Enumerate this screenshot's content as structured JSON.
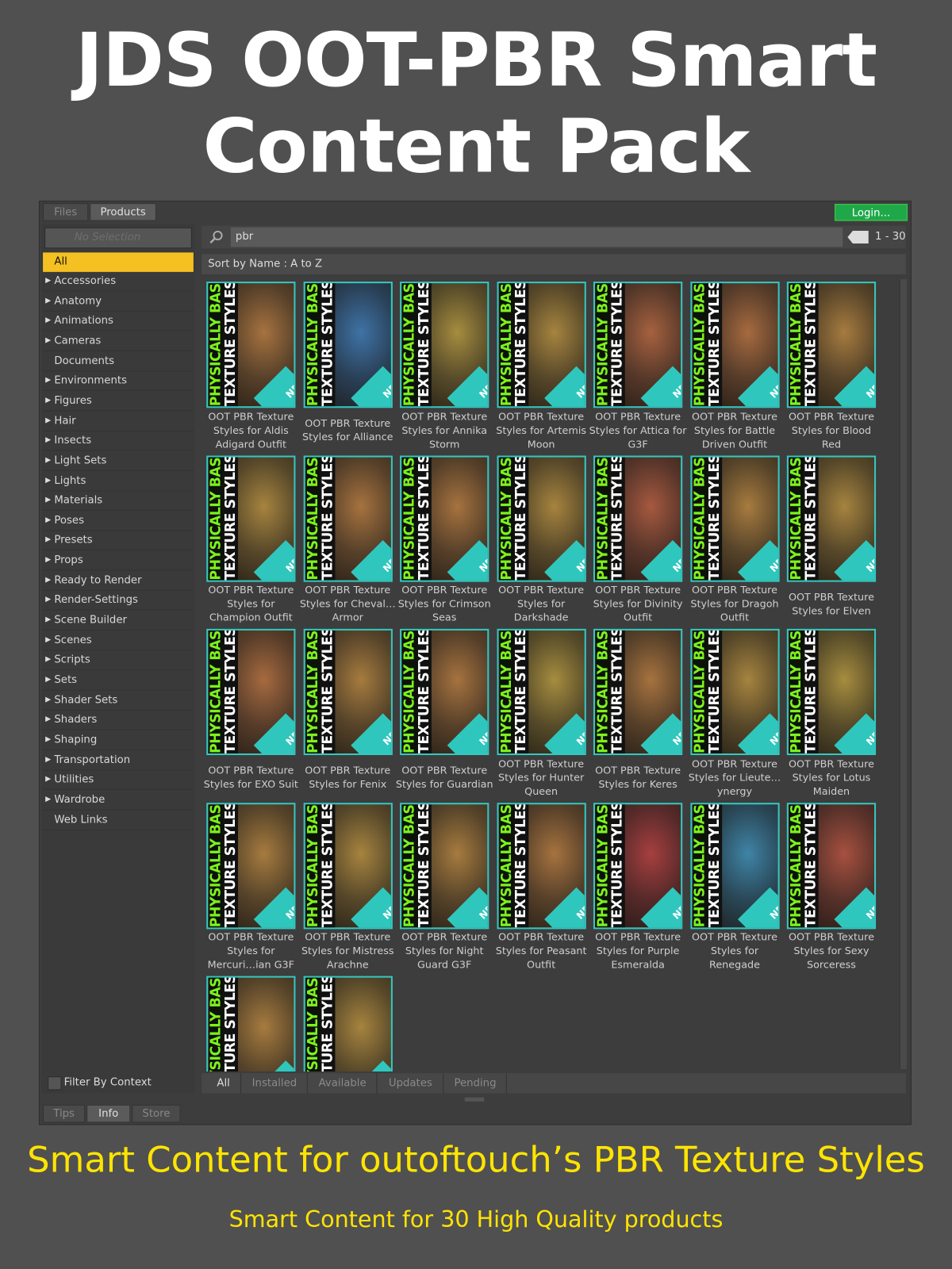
{
  "header": {
    "title": "JDS OOT-PBR Smart Content Pack"
  },
  "top_tabs": [
    {
      "label": "Files",
      "active": false
    },
    {
      "label": "Products",
      "active": true
    }
  ],
  "login": "Login...",
  "sidebar": {
    "selector": "No Selection",
    "selected": "All",
    "categories": [
      {
        "label": "Accessories",
        "expandable": true
      },
      {
        "label": "Anatomy",
        "expandable": true
      },
      {
        "label": "Animations",
        "expandable": true
      },
      {
        "label": "Cameras",
        "expandable": true
      },
      {
        "label": "Documents",
        "expandable": false
      },
      {
        "label": "Environments",
        "expandable": true
      },
      {
        "label": "Figures",
        "expandable": true
      },
      {
        "label": "Hair",
        "expandable": true
      },
      {
        "label": "Insects",
        "expandable": true
      },
      {
        "label": "Light Sets",
        "expandable": true
      },
      {
        "label": "Lights",
        "expandable": true
      },
      {
        "label": "Materials",
        "expandable": true
      },
      {
        "label": "Poses",
        "expandable": true
      },
      {
        "label": "Presets",
        "expandable": true
      },
      {
        "label": "Props",
        "expandable": true
      },
      {
        "label": "Ready to Render",
        "expandable": true
      },
      {
        "label": "Render-Settings",
        "expandable": true
      },
      {
        "label": "Scene Builder",
        "expandable": true
      },
      {
        "label": "Scenes",
        "expandable": true
      },
      {
        "label": "Scripts",
        "expandable": true
      },
      {
        "label": "Sets",
        "expandable": true
      },
      {
        "label": "Shader Sets",
        "expandable": true
      },
      {
        "label": "Shaders",
        "expandable": true
      },
      {
        "label": "Shaping",
        "expandable": true
      },
      {
        "label": "Transportation",
        "expandable": true
      },
      {
        "label": "Utilities",
        "expandable": true
      },
      {
        "label": "Wardrobe",
        "expandable": true
      },
      {
        "label": "Web Links",
        "expandable": false
      }
    ],
    "filter": "Filter By Context"
  },
  "search": {
    "query": "pbr",
    "range": "1 - 30",
    "sort": "Sort by Name : A to Z"
  },
  "thumbnail": {
    "line1": "PHYSICALLY BASED",
    "line2": "TEXTURE STYLES",
    "badge": "NEW"
  },
  "products": [
    "OOT PBR Texture Styles for Aldis Adigard Outfit",
    "OOT PBR Texture Styles for Alliance",
    "OOT PBR Texture Styles for Annika Storm",
    "OOT PBR Texture Styles for Artemis Moon",
    "OOT PBR Texture Styles for Attica for G3F",
    "OOT PBR Texture Styles for Battle Driven Outfit",
    "OOT PBR Texture Styles for Blood Red",
    "OOT PBR Texture Styles for Champion Outfit",
    "OOT PBR Texture Styles for Cheval… Armor",
    "OOT PBR Texture Styles for Crimson Seas",
    "OOT PBR Texture Styles for Darkshade",
    "OOT PBR Texture Styles for Divinity Outfit",
    "OOT PBR Texture Styles for Dragoh Outfit",
    "OOT PBR Texture Styles for Elven",
    "OOT PBR Texture Styles for EXO Suit",
    "OOT PBR Texture Styles for Fenix",
    "OOT PBR Texture Styles for Guardian",
    "OOT PBR Texture Styles for Hunter Queen",
    "OOT PBR Texture Styles for Keres",
    "OOT PBR Texture Styles for Lieute…ynergy",
    "OOT PBR Texture Styles for Lotus Maiden",
    "OOT PBR Texture Styles for Mercuri…ian G3F",
    "OOT PBR Texture Styles for Mistress Arachne",
    "OOT PBR Texture Styles for Night Guard G3F",
    "OOT PBR Texture Styles for Peasant Outfit",
    "OOT PBR Texture Styles for Purple Esmeralda",
    "OOT PBR Texture Styles for Renegade",
    "OOT PBR Texture Styles for Sexy Sorceress",
    null,
    null
  ],
  "filter_tabs": [
    "All",
    "Installed",
    "Available",
    "Updates",
    "Pending"
  ],
  "lower_tabs": [
    {
      "label": "Tips",
      "active": false
    },
    {
      "label": "Info",
      "active": true
    },
    {
      "label": "Store",
      "active": false
    }
  ],
  "footer": {
    "headline": "Smart Content for outoftouch’s PBR Texture Styles",
    "subline": "Smart Content for 30 High Quality products"
  }
}
